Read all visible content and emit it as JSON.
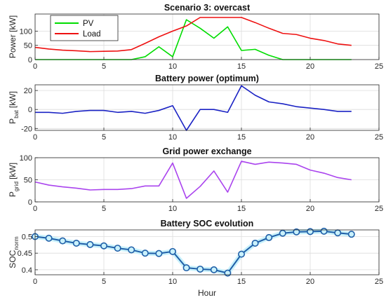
{
  "chart_data": [
    {
      "type": "line",
      "title": "Scenario 3: overcast",
      "ylabel": "Power [kW]",
      "xlim": [
        0,
        25
      ],
      "ylim": [
        0,
        160
      ],
      "xticks": [
        "0",
        "5",
        "10",
        "15",
        "20",
        "25"
      ],
      "yticks": [
        "0",
        "50",
        "100"
      ],
      "grid": true,
      "legend": "top-left",
      "x": [
        0,
        1,
        2,
        3,
        4,
        5,
        6,
        7,
        8,
        9,
        10,
        11,
        12,
        13,
        14,
        15,
        16,
        17,
        18,
        19,
        20,
        21,
        22,
        23
      ],
      "series": [
        {
          "name": "PV",
          "color": "#00dd00",
          "values": [
            0,
            0,
            0,
            0,
            0,
            0,
            0,
            0,
            10,
            45,
            10,
            140,
            110,
            75,
            115,
            32,
            36,
            15,
            0,
            0,
            0,
            0,
            0,
            0
          ]
        },
        {
          "name": "Load",
          "color": "#ee1111",
          "values": [
            43,
            37,
            33,
            31,
            28,
            29,
            30,
            35,
            57,
            80,
            100,
            118,
            148,
            148,
            148,
            148,
            130,
            110,
            92,
            88,
            75,
            67,
            55,
            50
          ]
        }
      ]
    },
    {
      "type": "line",
      "title": "Battery power (optimum)",
      "ylabel_main": "P",
      "ylabel_sub": "bat",
      "ylabel_unit": "[kW]",
      "xlim": [
        0,
        25
      ],
      "ylim": [
        -22,
        26
      ],
      "xticks": [
        "0",
        "5",
        "10",
        "15",
        "20",
        "25"
      ],
      "yticks": [
        "-20",
        "0",
        "20"
      ],
      "ytick_values": [
        -20,
        0,
        20
      ],
      "grid": true,
      "x": [
        0,
        1,
        2,
        3,
        4,
        5,
        6,
        7,
        8,
        9,
        10,
        11,
        12,
        13,
        14,
        15,
        16,
        17,
        18,
        19,
        20,
        21,
        22,
        23
      ],
      "series": [
        {
          "color": "#1a22c4",
          "values": [
            -3,
            -3,
            -4,
            -2,
            -1,
            -1,
            -3,
            -2,
            -4,
            -1,
            4,
            -22,
            0,
            0,
            -3,
            25,
            15,
            8,
            6,
            3,
            1.5,
            0,
            -2,
            -2
          ]
        }
      ]
    },
    {
      "type": "line",
      "title": "Grid power exchange",
      "ylabel_main": "P",
      "ylabel_sub": "grid",
      "ylabel_unit": "[kW]",
      "xlim": [
        0,
        25
      ],
      "ylim": [
        0,
        100
      ],
      "xticks": [
        "0",
        "5",
        "10",
        "15",
        "20",
        "25"
      ],
      "yticks": [
        "0",
        "50",
        "100"
      ],
      "grid": true,
      "x": [
        0,
        1,
        2,
        3,
        4,
        5,
        6,
        7,
        8,
        9,
        10,
        11,
        12,
        13,
        14,
        15,
        16,
        17,
        18,
        19,
        20,
        21,
        22,
        23
      ],
      "series": [
        {
          "color": "#aa44ee",
          "values": [
            45,
            38,
            34,
            31,
            27,
            28,
            28,
            30,
            36,
            36,
            88,
            8,
            35,
            70,
            22,
            92,
            85,
            90,
            88,
            85,
            72,
            65,
            55,
            50
          ]
        }
      ]
    },
    {
      "type": "line",
      "title": "Battery SOC evolution",
      "ylabel_main": "SOC",
      "ylabel_sub": "norm",
      "xlabel": "Hour",
      "xlim": [
        0,
        25
      ],
      "ylim": [
        0.385,
        0.52
      ],
      "xticks": [
        "0",
        "5",
        "10",
        "15",
        "20",
        "25"
      ],
      "yticks": [
        "0.4",
        "0.45",
        "0.5"
      ],
      "ytick_values": [
        0.4,
        0.45,
        0.5
      ],
      "grid": true,
      "markers": "circle",
      "x": [
        0,
        1,
        2,
        3,
        4,
        5,
        6,
        7,
        8,
        9,
        10,
        11,
        12,
        13,
        14,
        15,
        16,
        17,
        18,
        19,
        20,
        21,
        22,
        23
      ],
      "series": [
        {
          "color": "#1f5fa8",
          "values": [
            0.5,
            0.495,
            0.487,
            0.48,
            0.476,
            0.472,
            0.465,
            0.46,
            0.45,
            0.449,
            0.455,
            0.406,
            0.402,
            0.4,
            0.39,
            0.447,
            0.48,
            0.497,
            0.51,
            0.514,
            0.515,
            0.516,
            0.511,
            0.507
          ]
        }
      ]
    }
  ]
}
